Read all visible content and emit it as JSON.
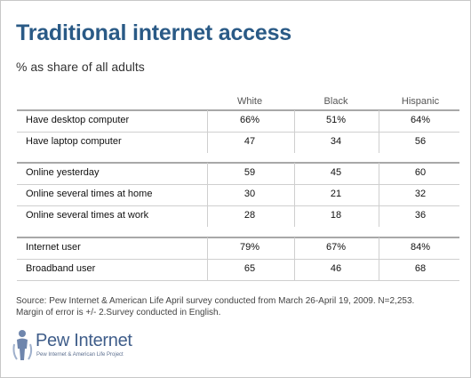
{
  "title": "Traditional internet access",
  "subtitle": "% as share of all adults",
  "columns": [
    "White",
    "Black",
    "Hispanic"
  ],
  "rows": [
    {
      "label": "Have desktop computer",
      "values": [
        "66%",
        "51%",
        "64%"
      ]
    },
    {
      "label": "Have laptop computer",
      "values": [
        "47",
        "34",
        "56"
      ]
    },
    {
      "label": "Online yesterday",
      "values": [
        "59",
        "45",
        "60"
      ]
    },
    {
      "label": "Online several times at home",
      "values": [
        "30",
        "21",
        "32"
      ]
    },
    {
      "label": "Online several times at work",
      "values": [
        "28",
        "18",
        "36"
      ]
    },
    {
      "label": "Internet user",
      "values": [
        "79%",
        "67%",
        "84%"
      ]
    },
    {
      "label": "Broadband user",
      "values": [
        "65",
        "46",
        "68"
      ]
    }
  ],
  "source_line1": "Source: Pew Internet & American Life April survey conducted from March 26-April 19, 2009. N=2,253.",
  "source_line2": "Margin of error is +/- 2.Survey conducted in English.",
  "logo": {
    "name": "Pew Internet",
    "tagline": "Pew Internet & American Life Project"
  },
  "colors": {
    "title": "#2a5a86",
    "logo": "#3f5d8a"
  }
}
